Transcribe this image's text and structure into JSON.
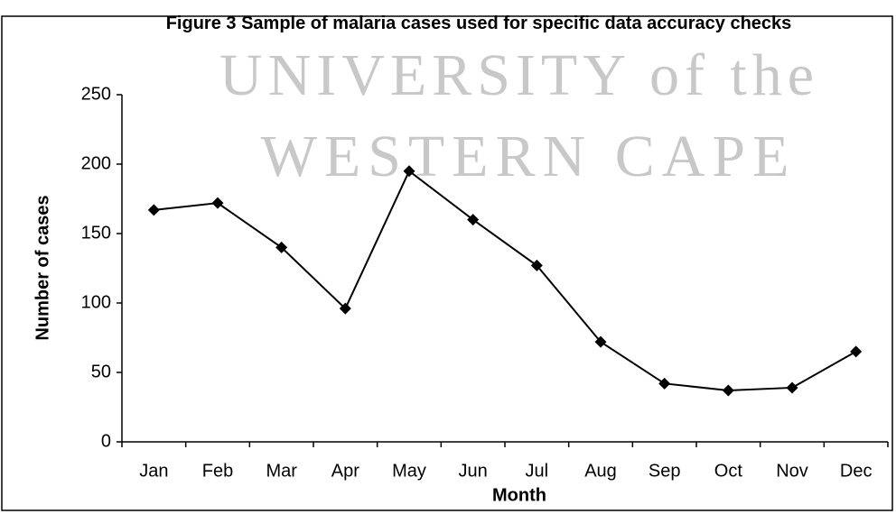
{
  "chart_data": {
    "type": "line",
    "title": "Figure 3 Sample of malaria cases used for specific data accuracy checks",
    "watermark": [
      "UNIVERSITY of the",
      "WESTERN CAPE"
    ],
    "x_label": "Month",
    "y_label": "Number of cases",
    "categories": [
      "Jan",
      "Feb",
      "Mar",
      "Apr",
      "May",
      "Jun",
      "Jul",
      "Aug",
      "Sep",
      "Oct",
      "Nov",
      "Dec"
    ],
    "series": [
      {
        "name": "Malaria cases",
        "color": "#000000",
        "values": [
          167,
          172,
          140,
          96,
          195,
          160,
          127,
          72,
          42,
          37,
          39,
          65
        ]
      }
    ],
    "ylim": [
      0,
      250
    ],
    "yticks": [
      0,
      50,
      100,
      150,
      200,
      250
    ],
    "grid": false,
    "legend": false
  }
}
